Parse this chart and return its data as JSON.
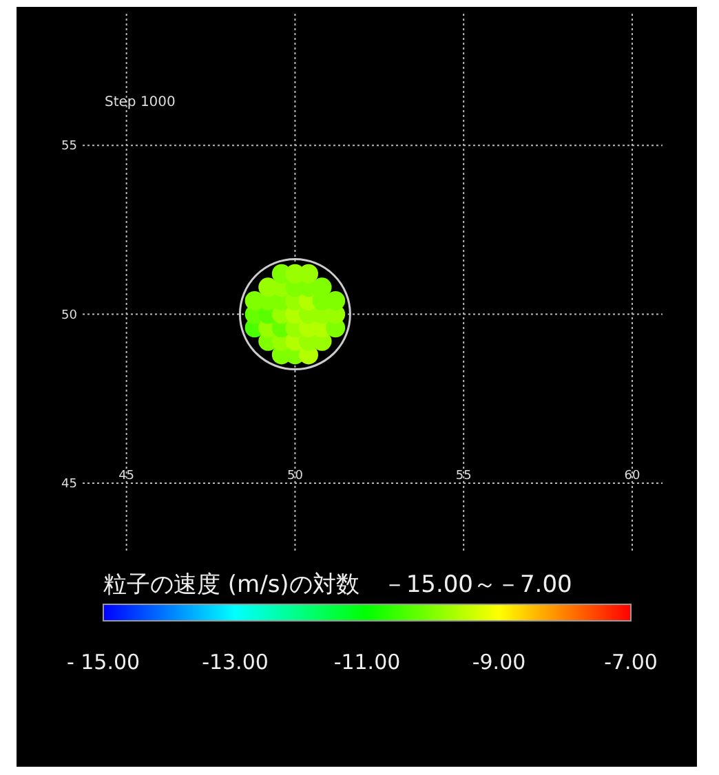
{
  "chart_data": {
    "type": "scatter",
    "annotations": [
      "Step 1000"
    ],
    "clabel": "粒子の速度 (m/s)の対数　－15.00～－7.00",
    "x": [
      48.8,
      48.8,
      48.8,
      49.2,
      49.2,
      49.2,
      49.2,
      49.2,
      49.6,
      49.6,
      49.6,
      49.6,
      49.6,
      49.6,
      49.6,
      50,
      50,
      50,
      50,
      50,
      50,
      50,
      50.4,
      50.4,
      50.4,
      50.4,
      50.4,
      50.4,
      50.4,
      50.8,
      50.8,
      50.8,
      50.8,
      50.8,
      51.2,
      51.2,
      51.2
    ],
    "values": [
      49.6,
      50,
      50.4,
      49.2,
      49.6,
      50,
      50.4,
      50.8,
      48.8,
      49.2,
      49.6,
      50,
      50.4,
      50.8,
      51.2,
      48.8,
      49.2,
      49.6,
      50,
      50.4,
      50.8,
      51.2,
      48.8,
      49.2,
      49.6,
      50,
      50.4,
      50.8,
      51.2,
      49.2,
      49.6,
      50,
      50.4,
      50.8,
      49.6,
      50,
      50.4
    ],
    "cvalues": [
      -10.4,
      -10.2,
      -10,
      -10,
      -9.8,
      -10.3,
      -10,
      -9.8,
      -10,
      -9.8,
      -10.2,
      -9.8,
      -10,
      -9.8,
      -10,
      -10,
      -9.6,
      -9.8,
      -9.6,
      -9.8,
      -10,
      -9.8,
      -9.6,
      -9.8,
      -9.6,
      -9.8,
      -9.6,
      -10,
      -9.8,
      -9.8,
      -9.6,
      -9.8,
      -10,
      -10,
      -10,
      -9.8,
      -10
    ],
    "marker": "circle",
    "grid": true,
    "xlim": [
      43.7,
      60.9
    ],
    "ylim": [
      43.0,
      58.9
    ],
    "xticks": [
      45,
      50,
      55,
      60
    ],
    "yticks": [
      45,
      50,
      55
    ],
    "clim": [
      -15,
      -7
    ],
    "cticks": [
      {
        "value": -15,
        "label": "- 15.00"
      },
      {
        "value": -13,
        "label": "-13.00"
      },
      {
        "value": -11,
        "label": "-11.00"
      },
      {
        "value": -9,
        "label": "-9.00"
      },
      {
        "value": -7,
        "label": "-7.00"
      }
    ]
  }
}
